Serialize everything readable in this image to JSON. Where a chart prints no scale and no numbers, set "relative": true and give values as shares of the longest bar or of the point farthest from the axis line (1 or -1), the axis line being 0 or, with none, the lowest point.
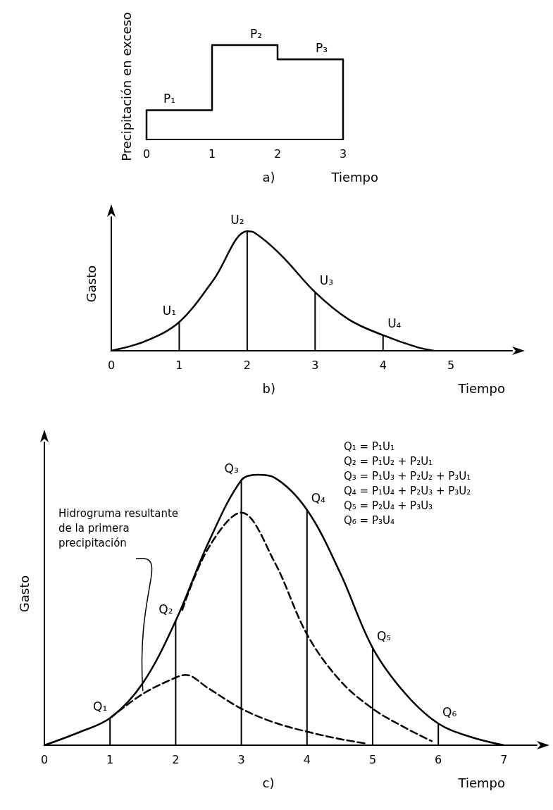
{
  "chart_data": [
    {
      "type": "step",
      "title": "a)",
      "xlabel": "Tiempo",
      "ylabel": "Precipitación en exceso",
      "relative": true,
      "tick_labels": "x",
      "marker": "none",
      "xlim": [
        0,
        3
      ],
      "xticks": [
        0,
        1,
        2,
        3
      ],
      "series": [
        {
          "color": "#000000",
          "x": [
            0,
            0,
            1,
            2,
            3,
            3
          ],
          "values": [
            0,
            0.31,
            1,
            0.85,
            0.85,
            0
          ]
        }
      ],
      "annotations": [
        {
          "text": "P₁",
          "x": 0.5,
          "y": 0.31
        },
        {
          "text": "P₂",
          "x": 1.5,
          "y": 1
        },
        {
          "text": "P₃",
          "x": 2.5,
          "y": 0.85
        }
      ]
    },
    {
      "type": "line",
      "title": "b)",
      "xlabel": "Tiempo",
      "ylabel": "Gasto",
      "relative": true,
      "tick_labels": "x",
      "marker": "none",
      "line_style": "solid",
      "xlim": [
        0,
        5.9
      ],
      "xticks": [
        0,
        1,
        2,
        3,
        4,
        5
      ],
      "series": [
        {
          "color": "#000000",
          "x": [
            0,
            0.5,
            1,
            1.5,
            2,
            2.1,
            2.5,
            3,
            3.5,
            4,
            4.5,
            4.75
          ],
          "values": [
            0,
            0.08,
            0.24,
            0.59,
            1,
            0.99,
            0.8,
            0.49,
            0.26,
            0.13,
            0.03,
            0
          ]
        },
        {
          "type": "bar",
          "color": "#000000",
          "x": [
            1,
            2,
            3,
            4
          ],
          "values": [
            0.24,
            1,
            0.49,
            0.13
          ]
        }
      ],
      "annotations": [
        {
          "text": "U₁",
          "x": 1,
          "y": 0.24
        },
        {
          "text": "U₂",
          "x": 2,
          "y": 1
        },
        {
          "text": "U₃",
          "x": 3,
          "y": 0.49
        },
        {
          "text": "U₄",
          "x": 4,
          "y": 0.13
        }
      ]
    },
    {
      "type": "line",
      "title": "c)",
      "xlabel": "Tiempo",
      "ylabel": "Gasto",
      "relative": true,
      "tick_labels": "x",
      "marker": "none",
      "line_style": "solid",
      "xlim": [
        0,
        7.5
      ],
      "xticks": [
        0,
        1,
        2,
        3,
        4,
        5,
        6,
        7
      ],
      "series": [
        {
          "color": "#000000",
          "x": [
            0,
            0.5,
            1,
            1.5,
            2,
            2.5,
            3,
            3.25,
            3.5,
            4,
            4.5,
            5,
            5.5,
            6,
            6.5,
            7
          ],
          "values": [
            0,
            0.045,
            0.1,
            0.23,
            0.46,
            0.75,
            0.98,
            1,
            0.99,
            0.87,
            0.64,
            0.36,
            0.19,
            0.08,
            0.03,
            0
          ]
        },
        {
          "color": "#000000",
          "line_style": "dashed",
          "x": [
            2.1,
            2.5,
            3,
            3.5,
            4,
            4.5,
            5,
            5.5,
            5.9
          ],
          "values": [
            0.5,
            0.73,
            0.86,
            0.68,
            0.41,
            0.24,
            0.135,
            0.064,
            0.015
          ]
        },
        {
          "color": "#000000",
          "line_style": "dashed",
          "x": [
            1,
            1.5,
            2,
            2.15,
            2.5,
            3,
            3.5,
            4,
            4.5,
            4.9
          ],
          "values": [
            0.1,
            0.19,
            0.25,
            0.26,
            0.21,
            0.135,
            0.084,
            0.05,
            0.023,
            0.006
          ]
        },
        {
          "type": "bar",
          "color": "#000000",
          "x": [
            1,
            2,
            3,
            4,
            5,
            6
          ],
          "values": [
            0.1,
            0.46,
            0.98,
            0.87,
            0.36,
            0.08
          ]
        }
      ],
      "annotations": [
        "Hidrogruma resultante de la primera precipitación",
        "Q₁ = P₁U₁\nQ₂ = P₁U₂ + P₂U₁\nQ₃ = P₁U₃ + P₂U₂ + P₃U₁\nQ₄ = P₁U₄ + P₂U₃ + P₃U₂\nQ₅ = P₂U₄ + P₃U₃\nQ₆ = P₃U₄",
        {
          "text": "Q₁",
          "x": 1,
          "y": 0.1
        },
        {
          "text": "Q₂",
          "x": 2,
          "y": 0.46
        },
        {
          "text": "Q₃",
          "x": 3,
          "y": 0.98
        },
        {
          "text": "Q₄",
          "x": 4,
          "y": 0.87
        },
        {
          "text": "Q₅",
          "x": 5,
          "y": 0.36
        },
        {
          "text": "Q₆",
          "x": 6,
          "y": 0.08
        }
      ]
    }
  ]
}
